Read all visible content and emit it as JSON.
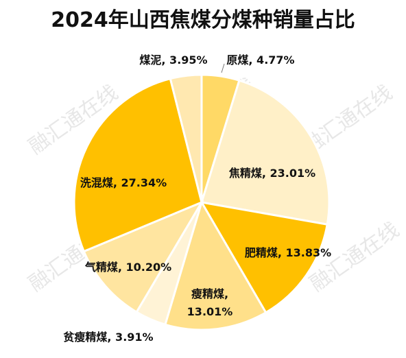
{
  "chart_data": {
    "type": "pie",
    "title": "2024年山西焦煤分煤种销量占比",
    "slices": [
      {
        "label": "原煤",
        "value": 4.77,
        "text": "原煤, 4.77%",
        "color": "#FFD966"
      },
      {
        "label": "焦精煤",
        "value": 23.01,
        "text": "焦精煤, 23.01%",
        "color": "#FFF0C8"
      },
      {
        "label": "肥精煤",
        "value": 13.83,
        "text": "肥精煤, 13.83%",
        "color": "#FFC000"
      },
      {
        "label": "瘦精煤",
        "value": 13.01,
        "text": "瘦精煤,|13.01%",
        "color": "#FFE08A"
      },
      {
        "label": "贫瘦精煤",
        "value": 3.91,
        "text": "贫瘦精煤, 3.91%",
        "color": "#FFF3D6"
      },
      {
        "label": "气精煤",
        "value": 10.2,
        "text": "气精煤, 10.20%",
        "color": "#FFE5A0"
      },
      {
        "label": "洗混煤",
        "value": 27.34,
        "text": "洗混煤, 27.34%",
        "color": "#FFC000"
      },
      {
        "label": "煤泥",
        "value": 3.95,
        "text": "煤泥, 3.95%",
        "color": "#FFE8B0"
      }
    ]
  },
  "watermark": "融汇通在线"
}
